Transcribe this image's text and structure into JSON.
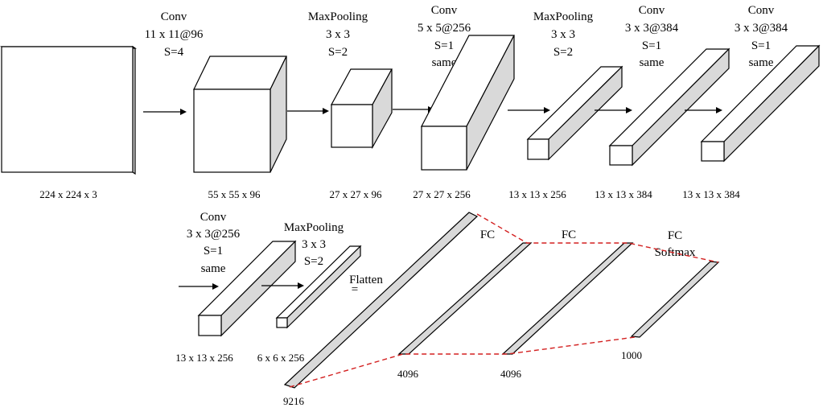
{
  "layers": [
    {
      "id": "input",
      "lines": [],
      "dim": "224 x 224 x 3"
    },
    {
      "id": "conv1",
      "lines": [
        "Conv",
        "11 x 11@96",
        "S=4"
      ],
      "dim": "55 x 55 x 96"
    },
    {
      "id": "pool1",
      "lines": [
        "MaxPooling",
        "3 x 3",
        "S=2"
      ],
      "dim": "27 x 27 x 96"
    },
    {
      "id": "conv2",
      "lines": [
        "Conv",
        "5 x 5@256",
        "S=1",
        "same"
      ],
      "dim": "27 x 27 x 256"
    },
    {
      "id": "pool2",
      "lines": [
        "MaxPooling",
        "3 x 3",
        "S=2"
      ],
      "dim": "13 x 13 x 256"
    },
    {
      "id": "conv3",
      "lines": [
        "Conv",
        "3 x 3@384",
        "S=1",
        "same"
      ],
      "dim": "13 x 13 x 384"
    },
    {
      "id": "conv4",
      "lines": [
        "Conv",
        "3 x 3@384",
        "S=1",
        "same"
      ],
      "dim": "13 x 13 x 384"
    },
    {
      "id": "conv5",
      "lines": [
        "Conv",
        "3 x 3@256",
        "S=1",
        "same"
      ],
      "dim": "13 x 13 x 256"
    },
    {
      "id": "pool3",
      "lines": [
        "MaxPooling",
        "3 x 3",
        "S=2"
      ],
      "dim": "6 x 6 x 256"
    },
    {
      "id": "flatten",
      "lines": [
        "Flatten"
      ],
      "dim": "9216"
    },
    {
      "id": "fc1",
      "lines": [
        "FC"
      ],
      "dim": "4096"
    },
    {
      "id": "fc2",
      "lines": [
        "FC"
      ],
      "dim": "4096"
    },
    {
      "id": "fc3",
      "lines": [
        "FC",
        "Softmax"
      ],
      "dim": "1000"
    }
  ],
  "flatten_symbol": "="
}
